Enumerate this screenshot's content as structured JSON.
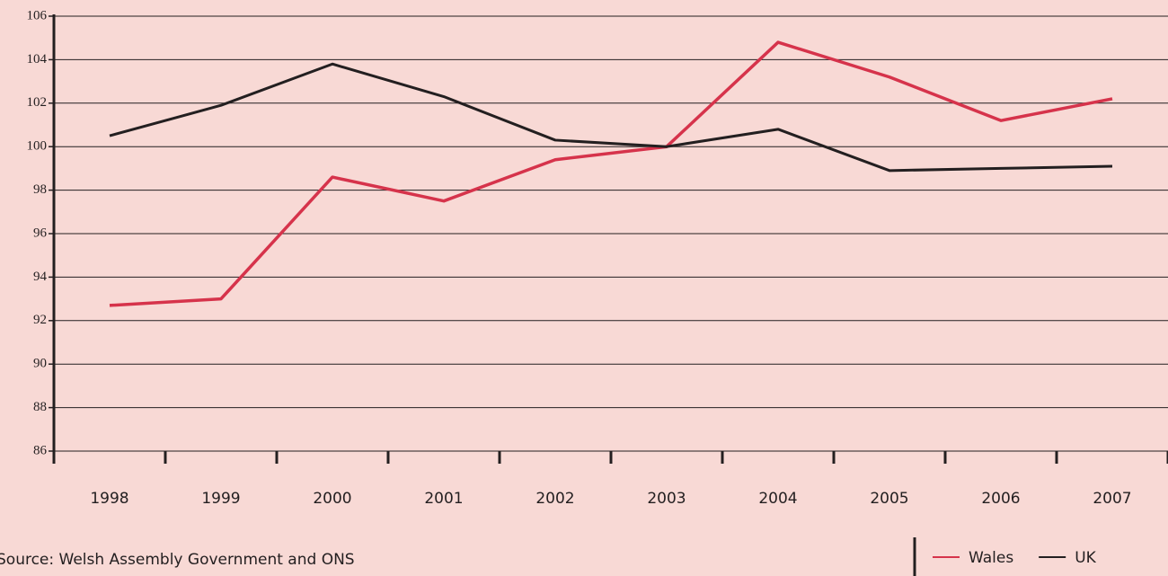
{
  "chart_data": {
    "type": "line",
    "categories": [
      "1998",
      "1999",
      "2000",
      "2001",
      "2002",
      "2003",
      "2004",
      "2005",
      "2006",
      "2007"
    ],
    "series": [
      {
        "name": "Wales",
        "color": "#d6334b",
        "values": [
          92.7,
          93.0,
          98.6,
          97.5,
          99.4,
          100.0,
          104.8,
          103.2,
          101.2,
          102.2
        ]
      },
      {
        "name": "UK",
        "color": "#231f20",
        "values": [
          100.5,
          101.9,
          103.8,
          102.3,
          100.3,
          100.0,
          100.8,
          98.9,
          99.0,
          99.1
        ]
      }
    ],
    "ylim": [
      86,
      106
    ],
    "yticks": [
      86,
      88,
      90,
      92,
      94,
      96,
      98,
      100,
      102,
      104,
      106
    ],
    "grid": true,
    "source": "Source: Welsh Assembly Government and ONS",
    "legend": "bottom-right"
  }
}
